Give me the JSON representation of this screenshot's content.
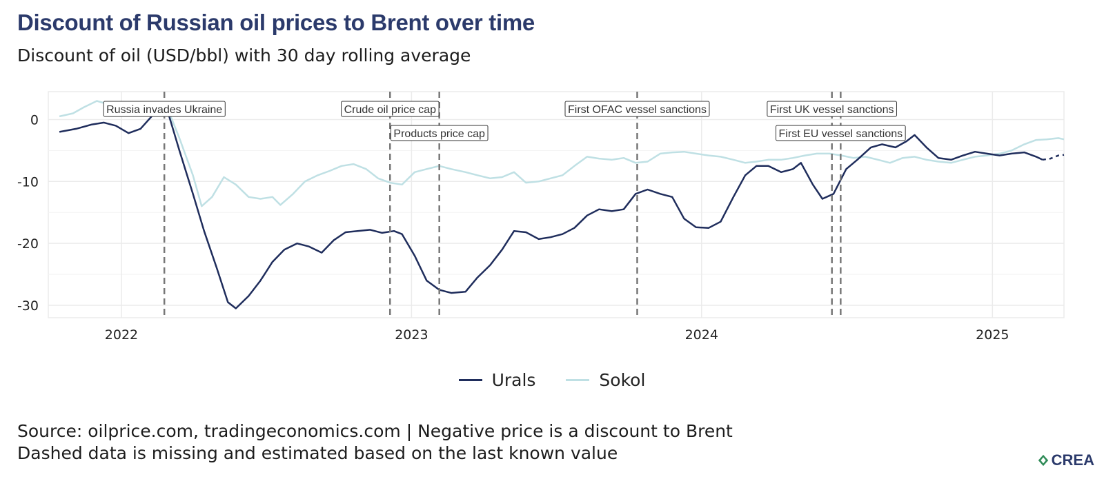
{
  "title": "Discount of Russian oil prices to Brent over time",
  "subtitle": "Discount of oil (USD/bbl) with 30 day rolling average",
  "source_line1": "Source: oilprice.com, tradingeconomics.com | Negative price is a discount to Brent",
  "source_line2": "Dashed data is missing and estimated based on the last known value",
  "logo_text": "CREA",
  "colors": {
    "urals": "#1f2d5c",
    "sokol": "#bfe0e4",
    "vline": "#777777",
    "grid": "#ebebeb"
  },
  "chart_data": {
    "type": "line",
    "title": "Discount of Russian oil prices to Brent over time",
    "subtitle": "Discount of oil (USD/bbl) with 30 day rolling average",
    "xlabel": "",
    "ylabel": "",
    "xlim": [
      "2021-10-01",
      "2025-04-01"
    ],
    "ylim": [
      -32,
      4.5
    ],
    "x_ticks": [
      "2022",
      "2023",
      "2024",
      "2025"
    ],
    "y_ticks": [
      0,
      -10,
      -20,
      -30
    ],
    "grid": true,
    "legend_position": "bottom",
    "series": [
      {
        "name": "Urals",
        "color": "#1f2d5c",
        "points": [
          [
            "2021-10-15",
            -2.0
          ],
          [
            "2021-11-05",
            -1.5
          ],
          [
            "2021-11-25",
            -0.8
          ],
          [
            "2021-12-10",
            -0.5
          ],
          [
            "2021-12-25",
            -1.0
          ],
          [
            "2022-01-10",
            -2.2
          ],
          [
            "2022-01-25",
            -1.5
          ],
          [
            "2022-02-08",
            0.5
          ],
          [
            "2022-02-20",
            1.5
          ],
          [
            "2022-03-01",
            1.0
          ],
          [
            "2022-03-15",
            -5.0
          ],
          [
            "2022-04-01",
            -12.0
          ],
          [
            "2022-04-15",
            -18.0
          ],
          [
            "2022-05-01",
            -24.0
          ],
          [
            "2022-05-15",
            -29.5
          ],
          [
            "2022-05-25",
            -30.5
          ],
          [
            "2022-06-10",
            -28.5
          ],
          [
            "2022-06-25",
            -26.0
          ],
          [
            "2022-07-10",
            -23.0
          ],
          [
            "2022-07-25",
            -21.0
          ],
          [
            "2022-08-10",
            -20.0
          ],
          [
            "2022-08-25",
            -20.5
          ],
          [
            "2022-09-10",
            -21.5
          ],
          [
            "2022-09-25",
            -19.5
          ],
          [
            "2022-10-10",
            -18.2
          ],
          [
            "2022-10-25",
            -18.0
          ],
          [
            "2022-11-10",
            -17.8
          ],
          [
            "2022-11-25",
            -18.3
          ],
          [
            "2022-12-10",
            -18.0
          ],
          [
            "2022-12-20",
            -18.5
          ],
          [
            "2023-01-05",
            -22.0
          ],
          [
            "2023-01-20",
            -26.0
          ],
          [
            "2023-02-05",
            -27.5
          ],
          [
            "2023-02-20",
            -28.0
          ],
          [
            "2023-03-10",
            -27.8
          ],
          [
            "2023-03-25",
            -25.5
          ],
          [
            "2023-04-10",
            -23.5
          ],
          [
            "2023-04-25",
            -21.0
          ],
          [
            "2023-05-10",
            -18.0
          ],
          [
            "2023-05-25",
            -18.2
          ],
          [
            "2023-06-10",
            -19.3
          ],
          [
            "2023-06-25",
            -19.0
          ],
          [
            "2023-07-10",
            -18.5
          ],
          [
            "2023-07-25",
            -17.5
          ],
          [
            "2023-08-10",
            -15.5
          ],
          [
            "2023-08-25",
            -14.5
          ],
          [
            "2023-09-10",
            -14.8
          ],
          [
            "2023-09-25",
            -14.5
          ],
          [
            "2023-10-10",
            -12.0
          ],
          [
            "2023-10-25",
            -11.3
          ],
          [
            "2023-11-10",
            -12.0
          ],
          [
            "2023-11-25",
            -12.5
          ],
          [
            "2023-12-10",
            -16.0
          ],
          [
            "2023-12-25",
            -17.4
          ],
          [
            "2024-01-10",
            -17.5
          ],
          [
            "2024-01-25",
            -16.5
          ],
          [
            "2024-02-10",
            -12.5
          ],
          [
            "2024-02-25",
            -9.0
          ],
          [
            "2024-03-10",
            -7.5
          ],
          [
            "2024-03-25",
            -7.5
          ],
          [
            "2024-04-10",
            -8.5
          ],
          [
            "2024-04-25",
            -8.0
          ],
          [
            "2024-05-05",
            -7.0
          ],
          [
            "2024-05-20",
            -10.5
          ],
          [
            "2024-06-01",
            -12.8
          ],
          [
            "2024-06-15",
            -12.0
          ],
          [
            "2024-07-01",
            -8.0
          ],
          [
            "2024-07-15",
            -6.5
          ],
          [
            "2024-08-01",
            -4.5
          ],
          [
            "2024-08-15",
            -4.0
          ],
          [
            "2024-09-01",
            -4.5
          ],
          [
            "2024-09-15",
            -3.5
          ],
          [
            "2024-09-25",
            -2.5
          ],
          [
            "2024-10-10",
            -4.5
          ],
          [
            "2024-10-25",
            -6.2
          ],
          [
            "2024-11-10",
            -6.5
          ],
          [
            "2024-11-25",
            -5.8
          ],
          [
            "2024-12-10",
            -5.2
          ],
          [
            "2024-12-25",
            -5.5
          ],
          [
            "2025-01-10",
            -5.8
          ],
          [
            "2025-01-25",
            -5.5
          ],
          [
            "2025-02-10",
            -5.3
          ],
          [
            "2025-02-25",
            -6.0
          ],
          [
            "2025-03-05",
            -6.5
          ]
        ],
        "estimated_points": [
          [
            "2025-03-05",
            -6.5
          ],
          [
            "2025-03-15",
            -6.3
          ],
          [
            "2025-03-25",
            -5.8
          ],
          [
            "2025-04-01",
            -5.7
          ]
        ]
      },
      {
        "name": "Sokol",
        "color": "#bfe0e4",
        "points": [
          [
            "2021-10-15",
            0.5
          ],
          [
            "2021-11-01",
            1.0
          ],
          [
            "2021-11-15",
            2.0
          ],
          [
            "2021-12-01",
            3.0
          ],
          [
            "2021-12-15",
            2.5
          ],
          [
            "2022-01-01",
            1.5
          ],
          [
            "2022-01-15",
            1.0
          ],
          [
            "2022-02-01",
            1.2
          ],
          [
            "2022-02-15",
            2.0
          ],
          [
            "2022-03-01",
            1.5
          ],
          [
            "2022-03-15",
            -3.0
          ],
          [
            "2022-04-01",
            -9.0
          ],
          [
            "2022-04-12",
            -14.0
          ],
          [
            "2022-04-25",
            -12.5
          ],
          [
            "2022-05-10",
            -9.3
          ],
          [
            "2022-05-25",
            -10.5
          ],
          [
            "2022-06-10",
            -12.5
          ],
          [
            "2022-06-25",
            -12.8
          ],
          [
            "2022-07-10",
            -12.5
          ],
          [
            "2022-07-20",
            -13.8
          ],
          [
            "2022-08-05",
            -12.0
          ],
          [
            "2022-08-20",
            -10.0
          ],
          [
            "2022-09-05",
            -9.0
          ],
          [
            "2022-09-20",
            -8.3
          ],
          [
            "2022-10-05",
            -7.5
          ],
          [
            "2022-10-20",
            -7.2
          ],
          [
            "2022-11-05",
            -8.0
          ],
          [
            "2022-11-20",
            -9.5
          ],
          [
            "2022-12-05",
            -10.2
          ],
          [
            "2022-12-20",
            -10.5
          ],
          [
            "2023-01-05",
            -8.5
          ],
          [
            "2023-01-20",
            -8.0
          ],
          [
            "2023-02-05",
            -7.5
          ],
          [
            "2023-02-20",
            -8.0
          ],
          [
            "2023-03-10",
            -8.5
          ],
          [
            "2023-03-25",
            -9.0
          ],
          [
            "2023-04-10",
            -9.5
          ],
          [
            "2023-04-25",
            -9.3
          ],
          [
            "2023-05-10",
            -8.5
          ],
          [
            "2023-05-25",
            -10.2
          ],
          [
            "2023-06-10",
            -10.0
          ],
          [
            "2023-06-25",
            -9.5
          ],
          [
            "2023-07-10",
            -9.0
          ],
          [
            "2023-07-25",
            -7.5
          ],
          [
            "2023-08-10",
            -6.0
          ],
          [
            "2023-08-25",
            -6.3
          ],
          [
            "2023-09-10",
            -6.5
          ],
          [
            "2023-09-25",
            -6.2
          ],
          [
            "2023-10-10",
            -7.0
          ],
          [
            "2023-10-25",
            -6.8
          ],
          [
            "2023-11-10",
            -5.5
          ],
          [
            "2023-11-25",
            -5.3
          ],
          [
            "2023-12-10",
            -5.2
          ],
          [
            "2023-12-25",
            -5.5
          ],
          [
            "2024-01-10",
            -5.8
          ],
          [
            "2024-01-25",
            -6.0
          ],
          [
            "2024-02-10",
            -6.5
          ],
          [
            "2024-02-25",
            -7.0
          ],
          [
            "2024-03-10",
            -6.8
          ],
          [
            "2024-03-25",
            -6.5
          ],
          [
            "2024-04-10",
            -6.5
          ],
          [
            "2024-04-25",
            -6.2
          ],
          [
            "2024-05-10",
            -5.8
          ],
          [
            "2024-05-25",
            -5.5
          ],
          [
            "2024-06-10",
            -5.5
          ],
          [
            "2024-06-25",
            -5.8
          ],
          [
            "2024-07-10",
            -6.2
          ],
          [
            "2024-07-25",
            -6.0
          ],
          [
            "2024-08-10",
            -6.5
          ],
          [
            "2024-08-25",
            -7.0
          ],
          [
            "2024-09-10",
            -6.2
          ],
          [
            "2024-09-25",
            -6.0
          ],
          [
            "2024-10-10",
            -6.5
          ],
          [
            "2024-10-25",
            -6.8
          ],
          [
            "2024-11-10",
            -7.0
          ],
          [
            "2024-11-25",
            -6.5
          ],
          [
            "2024-12-10",
            -6.0
          ],
          [
            "2024-12-25",
            -5.8
          ],
          [
            "2025-01-10",
            -5.5
          ],
          [
            "2025-01-25",
            -5.0
          ],
          [
            "2025-02-10",
            -4.0
          ],
          [
            "2025-02-25",
            -3.3
          ],
          [
            "2025-03-10",
            -3.2
          ],
          [
            "2025-03-25",
            -3.0
          ],
          [
            "2025-04-01",
            -3.2
          ]
        ]
      }
    ],
    "annotations": [
      {
        "label": "Russia invades Ukraine",
        "date": "2022-02-24",
        "level": 1
      },
      {
        "label": "Crude oil price cap",
        "date": "2022-12-05",
        "level": 1
      },
      {
        "label": "Products price cap",
        "date": "2023-02-05",
        "level": 2
      },
      {
        "label": "First OFAC vessel sanctions",
        "date": "2023-10-12",
        "level": 1
      },
      {
        "label": "First UK vessel sanctions",
        "date": "2024-06-13",
        "level": 1
      },
      {
        "label": "First EU vessel sanctions",
        "date": "2024-06-24",
        "level": 2
      }
    ]
  }
}
